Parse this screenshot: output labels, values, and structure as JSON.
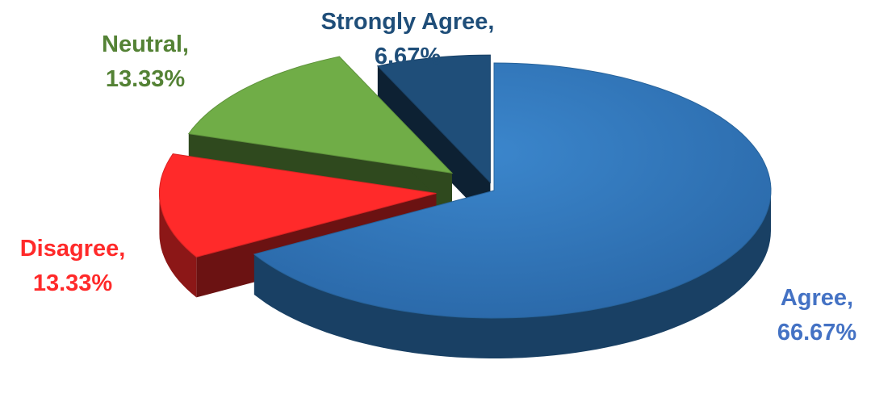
{
  "chart_data": {
    "type": "pie",
    "title": "",
    "style": "3d-exploded",
    "categories": [
      "Agree",
      "Disagree",
      "Neutral",
      "Strongly Agree"
    ],
    "values": [
      66.67,
      13.33,
      13.33,
      6.67
    ],
    "unit": "%",
    "colors": [
      "#2E75B6",
      "#FF2A2A",
      "#70AD47",
      "#1F4E79"
    ],
    "label_colors": [
      "#4472C4",
      "#FF2A2A",
      "#548235",
      "#1F4E79"
    ],
    "labels": [
      {
        "name": "Agree,",
        "value": "66.67%"
      },
      {
        "name": "Disagree,",
        "value": "13.33%"
      },
      {
        "name": "Neutral,",
        "value": "13.33%"
      },
      {
        "name": "Strongly Agree,",
        "value": "6.67%"
      }
    ],
    "legend": "none"
  }
}
